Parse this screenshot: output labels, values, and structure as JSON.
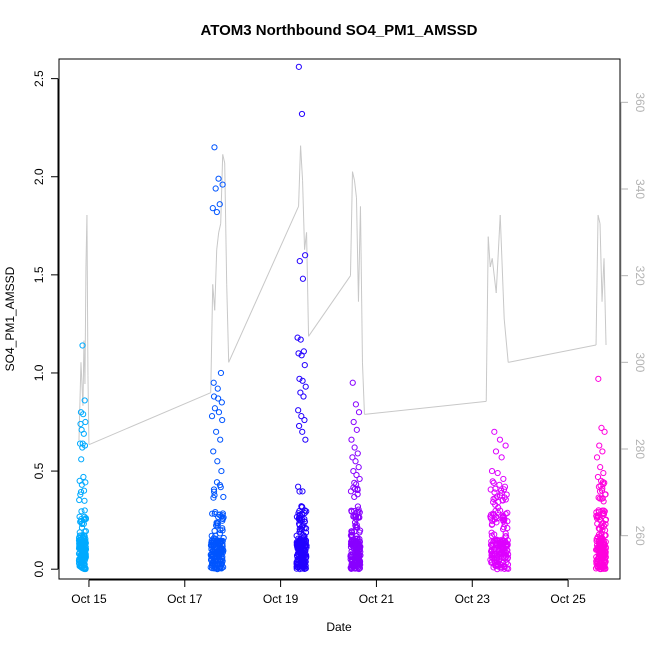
{
  "chart_data": {
    "type": "scatter",
    "title": "ATOM3 Northbound SO4_PM1_AMSSD",
    "xlabel": "Date",
    "ylabel": "SO4_PM1_AMSSD",
    "x_ticks": [
      "Oct 15",
      "Oct 17",
      "Oct 19",
      "Oct 21",
      "Oct 23",
      "Oct 25"
    ],
    "y_ticks": [
      "0.0",
      "0.5",
      "1.0",
      "1.5",
      "2.0",
      "2.5"
    ],
    "y2_ticks": [
      "260",
      "280",
      "300",
      "320",
      "340",
      "360"
    ],
    "xlim": [
      "2017-10-14T09:00",
      "2017-10-26T02:00"
    ],
    "ylim": [
      -0.05,
      2.6
    ],
    "y2lim": [
      250,
      370
    ],
    "point_color_gradient": [
      "#00aaff",
      "#0055ff",
      "#2200ff",
      "#8800ff",
      "#dd00ff",
      "#ff00dd"
    ],
    "line_color": "#c8c8c8",
    "series": [
      {
        "type": "scatter",
        "axis": "left",
        "flight_clusters": [
          {
            "date": "2017-10-14",
            "start": "2017-10-14T19:00",
            "end": "2017-10-14T22:30",
            "color": "#00aaff",
            "highlights": [
              0.74,
              0.64,
              0.63,
              0.56,
              0.47,
              0.45,
              0.43,
              0.4,
              0.38
            ],
            "upper": [
              1.14,
              0.86,
              0.8,
              0.79,
              0.75,
              0.71,
              0.69,
              0.64,
              0.62
            ]
          },
          {
            "date": "2017-10-17",
            "start": "2017-10-17T13:00",
            "end": "2017-10-17T19:30",
            "color": "#0055ff",
            "highlights": [
              0.95,
              0.92,
              0.85,
              0.82,
              0.8,
              0.78,
              0.7,
              0.66,
              0.6,
              0.55,
              0.5
            ],
            "upper": [
              2.15,
              1.99,
              1.96,
              1.94,
              1.86,
              1.84,
              1.82,
              1.0,
              0.88,
              0.87,
              0.76
            ]
          },
          {
            "date": "2017-10-19",
            "start": "2017-10-19T08:00",
            "end": "2017-10-19T13:00",
            "color": "#2200ff",
            "highlights": [
              2.56,
              2.32,
              1.6,
              1.57,
              1.48,
              1.18,
              1.17,
              1.11,
              1.1,
              1.09,
              1.04
            ],
            "upper": [
              0.97,
              0.96,
              0.93,
              0.9,
              0.88,
              0.81,
              0.78,
              0.76,
              0.73,
              0.7,
              0.66
            ]
          },
          {
            "date": "2017-10-20",
            "start": "2017-10-20T11:00",
            "end": "2017-10-20T16:00",
            "color": "#8800ff",
            "highlights": [
              0.95,
              0.84,
              0.8,
              0.75,
              0.71,
              0.66,
              0.62,
              0.59,
              0.57
            ],
            "upper": [
              0.55,
              0.52,
              0.5,
              0.48,
              0.46,
              0.44,
              0.41
            ]
          },
          {
            "date": "2017-10-23",
            "start": "2017-10-23T09:00",
            "end": "2017-10-23T18:00",
            "color": "#dd00ff",
            "highlights": [
              0.7,
              0.66,
              0.63,
              0.6,
              0.57,
              0.5,
              0.49,
              0.46,
              0.44,
              0.43
            ],
            "upper": [
              0.42,
              0.41,
              0.4,
              0.38,
              0.37,
              0.35
            ]
          },
          {
            "date": "2017-10-25",
            "start": "2017-10-25T14:00",
            "end": "2017-10-25T19:00",
            "color": "#ff00dd",
            "highlights": [
              0.97,
              0.72,
              0.7,
              0.63,
              0.6,
              0.57,
              0.52,
              0.49,
              0.47,
              0.45
            ],
            "upper": [
              0.44,
              0.42,
              0.4,
              0.38,
              0.36
            ]
          }
        ]
      },
      {
        "type": "line",
        "axis": "right",
        "points": [
          [
            "2017-10-14T19:00",
            282
          ],
          [
            "2017-10-14T20:00",
            300
          ],
          [
            "2017-10-14T21:00",
            290
          ],
          [
            "2017-10-14T21:30",
            305
          ],
          [
            "2017-10-14T22:00",
            295
          ],
          [
            "2017-10-14T22:30",
            322
          ],
          [
            "2017-10-14T23:00",
            334
          ],
          [
            "2017-10-14T23:30",
            297
          ],
          [
            "2017-10-15T00:00",
            281
          ],
          [
            "2017-10-17T13:00",
            293
          ],
          [
            "2017-10-17T14:00",
            318
          ],
          [
            "2017-10-17T15:00",
            312
          ],
          [
            "2017-10-17T16:00",
            326
          ],
          [
            "2017-10-17T17:00",
            330
          ],
          [
            "2017-10-17T18:00",
            332
          ],
          [
            "2017-10-17T19:00",
            348
          ],
          [
            "2017-10-17T20:00",
            346
          ],
          [
            "2017-10-17T21:00",
            318
          ],
          [
            "2017-10-17T22:00",
            300
          ],
          [
            "2017-10-19T09:00",
            336
          ],
          [
            "2017-10-19T10:00",
            350
          ],
          [
            "2017-10-19T11:00",
            342
          ],
          [
            "2017-10-19T12:00",
            326
          ],
          [
            "2017-10-19T13:00",
            330
          ],
          [
            "2017-10-19T14:00",
            306
          ],
          [
            "2017-10-20T11:00",
            320
          ],
          [
            "2017-10-20T12:00",
            344
          ],
          [
            "2017-10-20T13:00",
            342
          ],
          [
            "2017-10-20T14:00",
            338
          ],
          [
            "2017-10-20T15:00",
            314
          ],
          [
            "2017-10-20T16:00",
            336
          ],
          [
            "2017-10-20T17:00",
            300
          ],
          [
            "2017-10-20T18:00",
            288
          ],
          [
            "2017-10-23T07:00",
            291
          ],
          [
            "2017-10-23T08:00",
            329
          ],
          [
            "2017-10-23T09:00",
            322
          ],
          [
            "2017-10-23T10:00",
            324
          ],
          [
            "2017-10-23T12:00",
            316
          ],
          [
            "2017-10-23T14:00",
            334
          ],
          [
            "2017-10-23T16:00",
            310
          ],
          [
            "2017-10-23T18:00",
            300
          ],
          [
            "2017-10-25T14:00",
            304
          ],
          [
            "2017-10-25T15:00",
            334
          ],
          [
            "2017-10-25T16:00",
            332
          ],
          [
            "2017-10-25T17:00",
            314
          ],
          [
            "2017-10-25T18:00",
            324
          ],
          [
            "2017-10-25T19:00",
            304
          ]
        ]
      }
    ]
  }
}
